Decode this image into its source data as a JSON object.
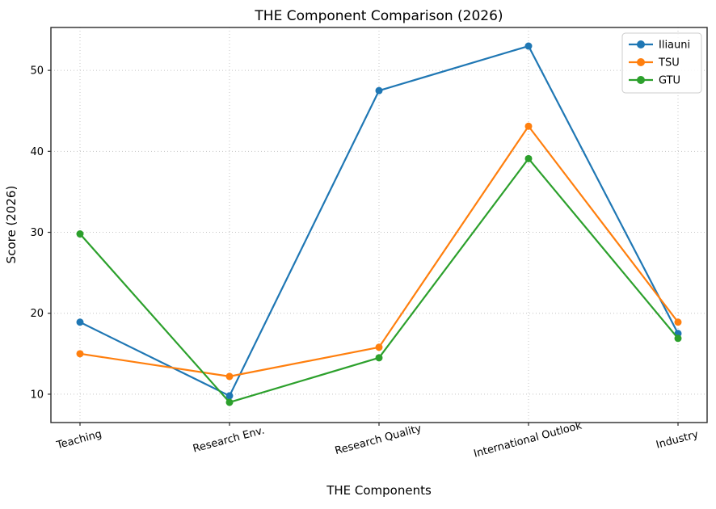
{
  "chart_data": {
    "type": "line",
    "title": "THE Component Comparison (2026)",
    "xlabel": "THE Components",
    "ylabel": "Score (2026)",
    "categories": [
      "Teaching",
      "Research Env.",
      "Research Quality",
      "International Outlook",
      "Industry"
    ],
    "series": [
      {
        "name": "Iliauni",
        "color": "#1f77b4",
        "values": [
          18.9,
          9.8,
          47.5,
          53.0,
          17.5
        ]
      },
      {
        "name": "TSU",
        "color": "#ff7f0e",
        "values": [
          15.0,
          12.2,
          15.8,
          43.1,
          18.9
        ]
      },
      {
        "name": "GTU",
        "color": "#2ca02c",
        "values": [
          29.8,
          9.0,
          14.5,
          39.1,
          16.9
        ]
      }
    ],
    "yticks": [
      10,
      20,
      30,
      40,
      50
    ],
    "ylim": [
      6.5,
      55.3
    ],
    "grid": true,
    "grid_style": "dotted",
    "grid_color": "#c4c4c4",
    "spine_color": "#2b2b2b",
    "legend_position": "upper right",
    "x_tick_rotation": -15
  }
}
